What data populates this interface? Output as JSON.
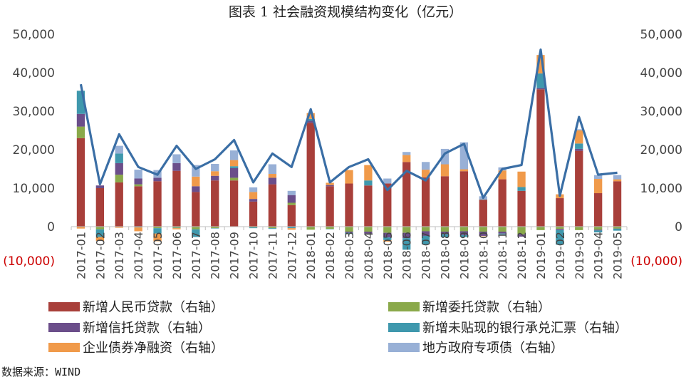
{
  "chart_data": {
    "type": "bar",
    "subtype": "stacked-bar-with-line",
    "title": "图表 1   社会融资规模结构变化（亿元）",
    "source": "数据来源：WIND",
    "ylim": [
      -10000,
      50000
    ],
    "yticks": [
      -10000,
      0,
      10000,
      20000,
      30000,
      40000,
      50000
    ],
    "ytick_labels": [
      "(10,000)",
      "0",
      "10,000",
      "20,000",
      "30,000",
      "40,000",
      "50,000"
    ],
    "negative_tick_color": "#cc0000",
    "grid": false,
    "legend_position": "bottom",
    "categories": [
      "2017-01",
      "2017-02",
      "2017-03",
      "2017-04",
      "2017-05",
      "2017-06",
      "2017-07",
      "2017-08",
      "2017-09",
      "2017-10",
      "2017-11",
      "2017-12",
      "2018-01",
      "2018-02",
      "2018-03",
      "2018-04",
      "2018-05",
      "2018-06",
      "2018-07",
      "2018-08",
      "2018-09",
      "2018-10",
      "2018-11",
      "2018-12",
      "2019-01",
      "2019-02",
      "2019-03",
      "2019-04",
      "2019-05"
    ],
    "series": [
      {
        "name": "新增人民币贷款（右轴）",
        "color": "#a83f3a",
        "values": [
          23000,
          10000,
          11500,
          10500,
          11800,
          14500,
          9000,
          12000,
          12000,
          6500,
          11000,
          5600,
          27000,
          10500,
          11200,
          10700,
          11200,
          16800,
          12800,
          13100,
          14400,
          7000,
          12300,
          9300,
          35700,
          7400,
          19700,
          8700,
          11800
        ]
      },
      {
        "name": "新增委托贷款（右轴）",
        "color": "#8aa94a",
        "values": [
          3000,
          -700,
          2000,
          500,
          -400,
          -300,
          -700,
          -400,
          700,
          -200,
          -400,
          600,
          -800,
          -600,
          -1300,
          -1300,
          -1600,
          -1600,
          -1200,
          -1300,
          -1200,
          -1300,
          -1300,
          -2000,
          -900,
          -600,
          -900,
          -800,
          -500
        ]
      },
      {
        "name": "新增信托贷款（右轴）",
        "color": "#6b4e8a",
        "values": [
          3300,
          700,
          3000,
          1500,
          900,
          2000,
          1500,
          1200,
          2500,
          700,
          1700,
          2000,
          500,
          300,
          -300,
          -500,
          -1200,
          -1400,
          -1200,
          -700,
          -1000,
          -1100,
          -500,
          -600,
          300,
          -300,
          500,
          -200,
          -50
        ]
      },
      {
        "name": "新增未贴现的银行承兑汇票（右轴）",
        "color": "#3f98ad",
        "values": [
          6000,
          -2000,
          2500,
          -200,
          -1400,
          -100,
          -2000,
          -100,
          500,
          -200,
          -200,
          -400,
          500,
          -100,
          -300,
          1300,
          -700,
          -3000,
          -2200,
          -700,
          -500,
          100,
          -200,
          1000,
          3800,
          -3800,
          1400,
          -500,
          -500
        ]
      },
      {
        "name": "企业债券净融资（右轴）",
        "color": "#f09a4a",
        "values": [
          -500,
          -1000,
          -300,
          -1000,
          -2000,
          -300,
          2500,
          1200,
          1600,
          1800,
          1000,
          -400,
          1500,
          600,
          3500,
          4000,
          -400,
          1800,
          2000,
          3100,
          500,
          -100,
          2300,
          4000,
          4800,
          1000,
          3400,
          3700,
          500
        ]
      },
      {
        "name": "地方政府专项债（右轴）",
        "color": "#98b0d6",
        "values": [
          0,
          0,
          2000,
          2300,
          2000,
          2300,
          3000,
          1900,
          2500,
          1200,
          2500,
          1100,
          0,
          0,
          0,
          0,
          1300,
          800,
          2000,
          4000,
          7000,
          800,
          800,
          0,
          0,
          0,
          300,
          1000,
          1100
        ]
      }
    ],
    "line": {
      "name": "社会融资规模",
      "color": "#3a6ea5",
      "values": [
        37000,
        11000,
        24000,
        15500,
        13500,
        21000,
        15000,
        17500,
        22500,
        11500,
        19000,
        15500,
        30500,
        11500,
        15500,
        17500,
        9500,
        14500,
        12000,
        19000,
        21500,
        7500,
        15000,
        16000,
        46000,
        8000,
        28500,
        13500,
        14000
      ]
    }
  }
}
